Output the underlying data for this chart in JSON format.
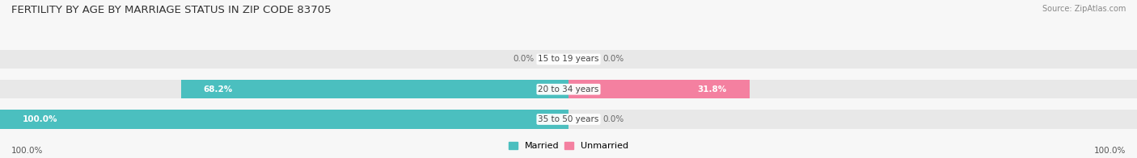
{
  "title": "FERTILITY BY AGE BY MARRIAGE STATUS IN ZIP CODE 83705",
  "source": "Source: ZipAtlas.com",
  "categories": [
    "15 to 19 years",
    "20 to 34 years",
    "35 to 50 years"
  ],
  "married": [
    0.0,
    68.2,
    100.0
  ],
  "unmarried": [
    0.0,
    31.8,
    0.0
  ],
  "married_color": "#4bbfbf",
  "unmarried_color": "#f480a0",
  "bar_bg_color": "#e8e8e8",
  "bar_height": 0.62,
  "title_fontsize": 9.5,
  "label_fontsize": 7.5,
  "category_fontsize": 7.5,
  "legend_fontsize": 8,
  "source_fontsize": 7,
  "axis_label_left": "100.0%",
  "axis_label_right": "100.0%",
  "fig_bg": "#f7f7f7"
}
